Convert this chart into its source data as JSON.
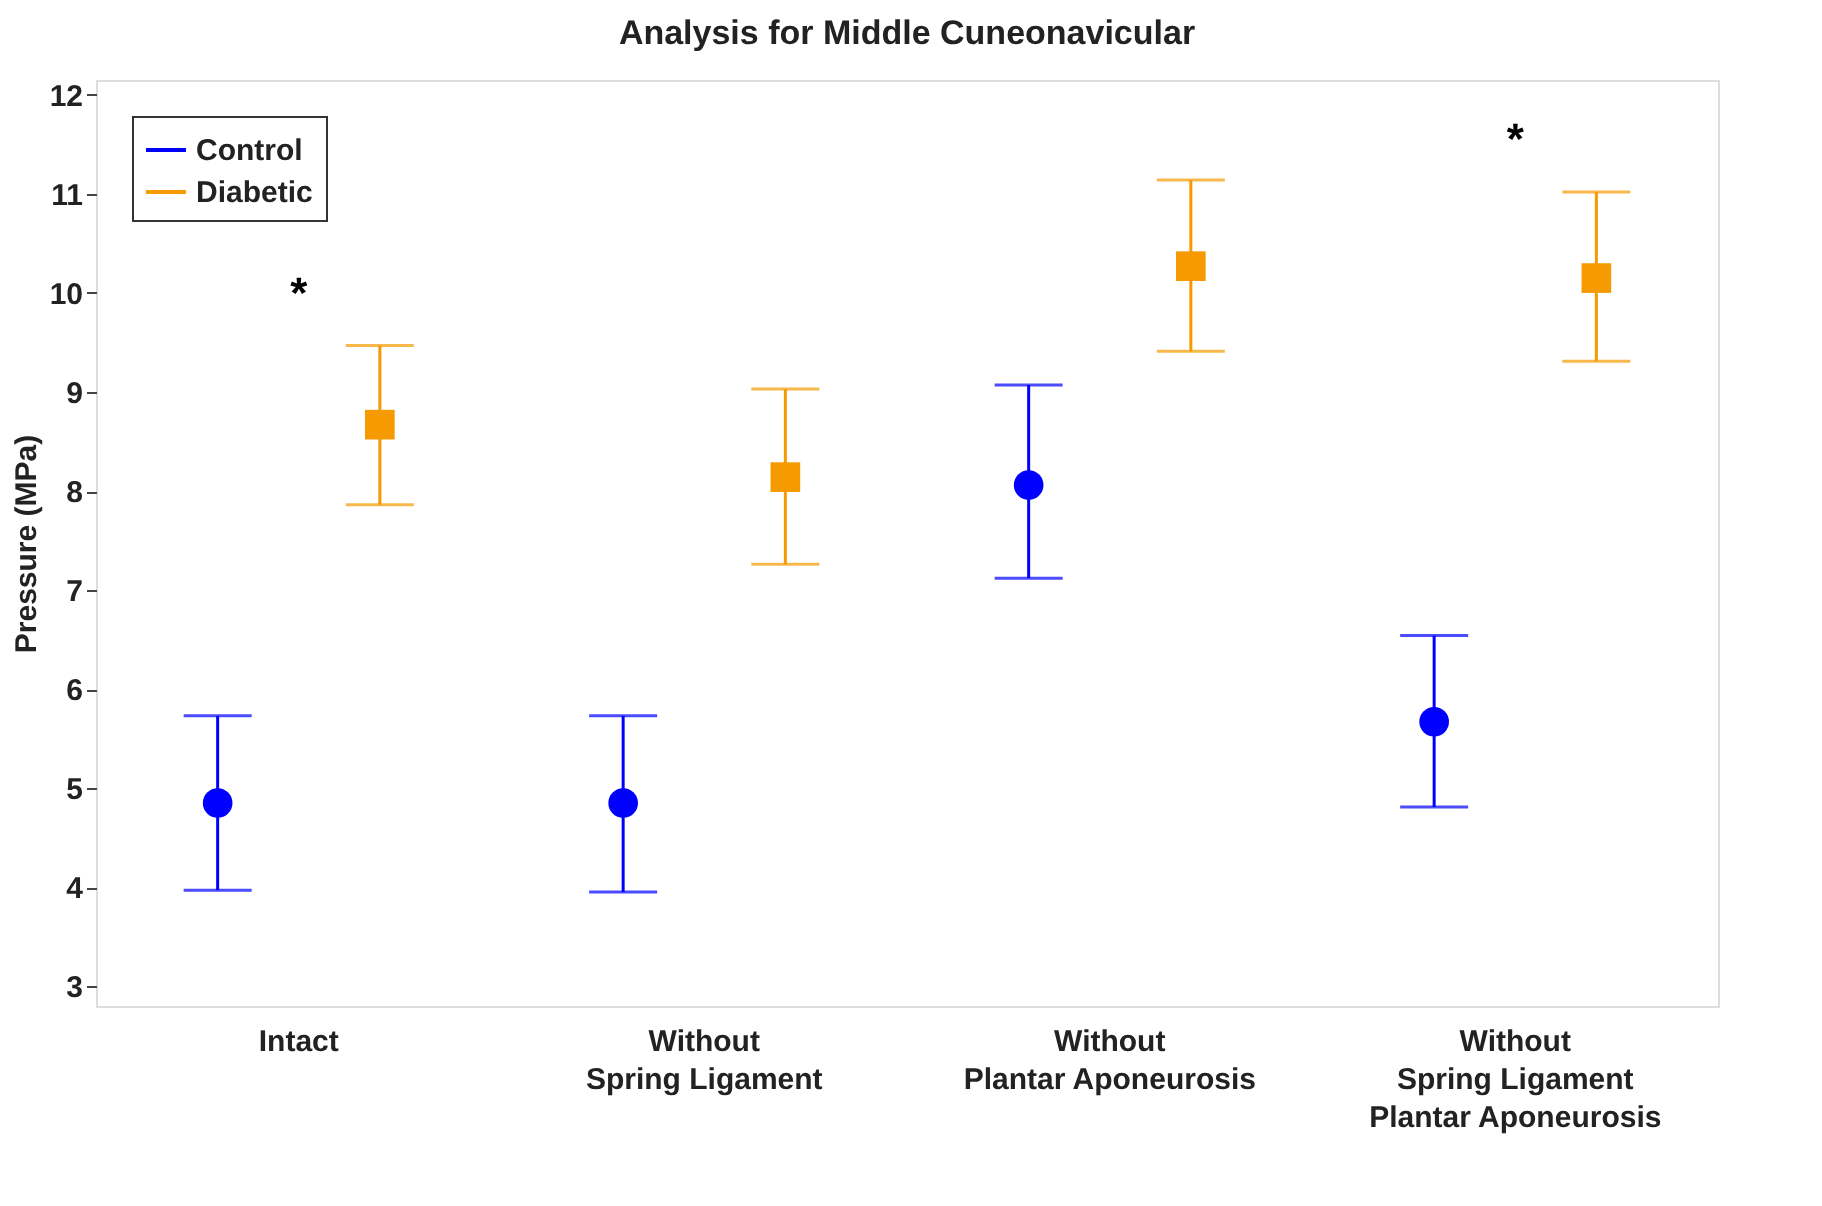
{
  "chart_data": {
    "type": "scatter",
    "title": "Analysis for Middle Cuneonavicular",
    "ylabel": "Pressure (MPa)",
    "categories": [
      "Intact",
      "Without\nSpring Ligament",
      "Without\nPlantar Aponeurosis",
      "Without\nSpring Ligament\nPlantar Aponeurosis"
    ],
    "series": [
      {
        "name": "Control",
        "color": "#0000ff",
        "marker": "circle",
        "values": [
          4.85,
          4.85,
          8.06,
          5.67
        ],
        "errors": [
          [
            3.97,
            5.73
          ],
          [
            3.95,
            5.73
          ],
          [
            7.12,
            9.07
          ],
          [
            4.81,
            6.54
          ]
        ]
      },
      {
        "name": "Diabetic",
        "color": "#f59a00",
        "marker": "square",
        "values": [
          8.67,
          8.14,
          10.27,
          10.15
        ],
        "errors": [
          [
            7.86,
            9.47
          ],
          [
            7.26,
            9.03
          ],
          [
            9.41,
            11.14
          ],
          [
            9.31,
            11.02
          ]
        ]
      }
    ],
    "ylim": [
      2.8,
      12.15
    ],
    "yticks": [
      3,
      4,
      5,
      6,
      7,
      8,
      9,
      10,
      11,
      12
    ],
    "grid": false,
    "legend": "top left",
    "annotations": [
      "*",
      "*"
    ]
  }
}
